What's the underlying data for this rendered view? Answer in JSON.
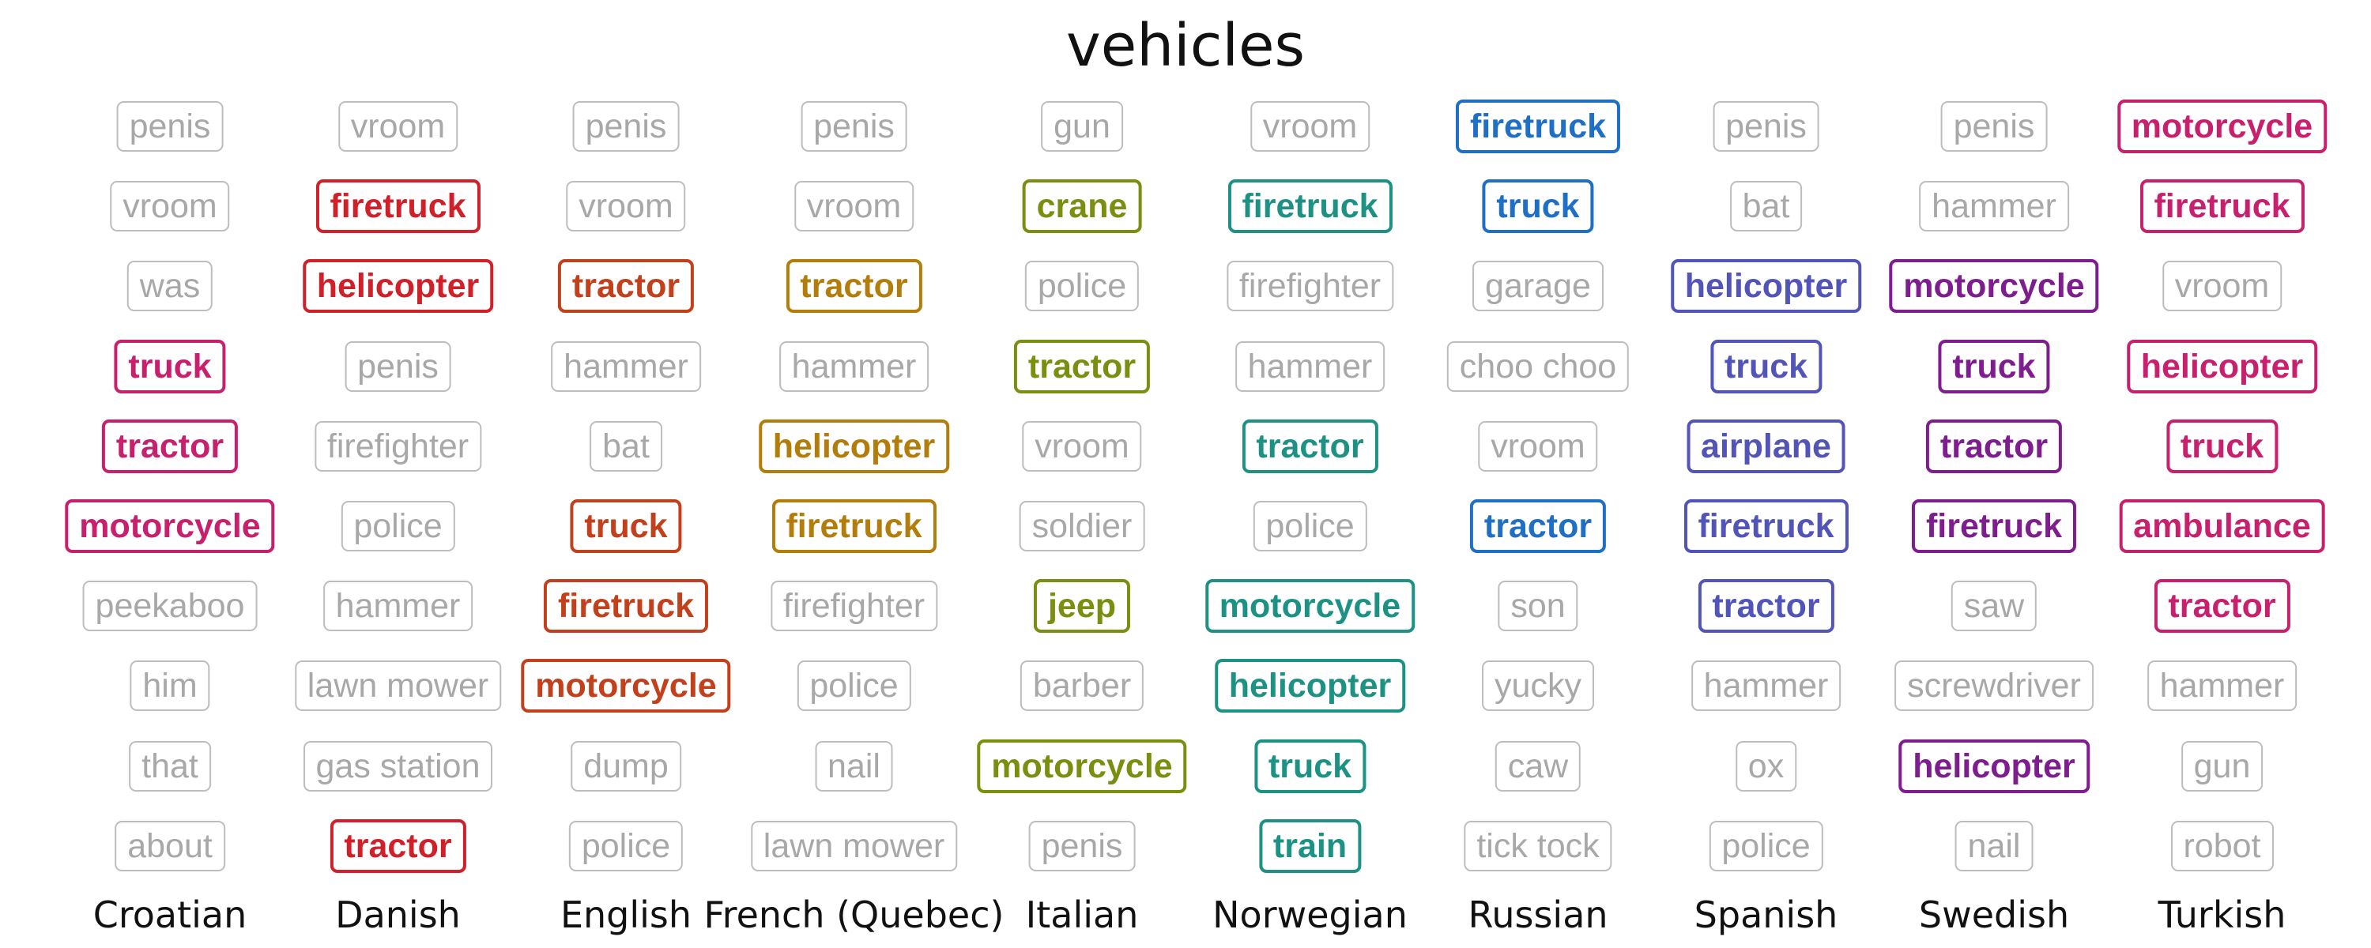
{
  "chart_data": {
    "type": "table",
    "title": "vehicles",
    "languages": [
      {
        "name": "Croatian",
        "color": "#c7206d",
        "words": [
          {
            "w": "penis",
            "hl": false
          },
          {
            "w": "vroom",
            "hl": false
          },
          {
            "w": "was",
            "hl": false
          },
          {
            "w": "truck",
            "hl": true
          },
          {
            "w": "tractor",
            "hl": true
          },
          {
            "w": "motorcycle",
            "hl": true
          },
          {
            "w": "peekaboo",
            "hl": false
          },
          {
            "w": "him",
            "hl": false
          },
          {
            "w": "that",
            "hl": false
          },
          {
            "w": "about",
            "hl": false
          }
        ]
      },
      {
        "name": "Danish",
        "color": "#d0202a",
        "words": [
          {
            "w": "vroom",
            "hl": false
          },
          {
            "w": "firetruck",
            "hl": true
          },
          {
            "w": "helicopter",
            "hl": true
          },
          {
            "w": "penis",
            "hl": false
          },
          {
            "w": "firefighter",
            "hl": false
          },
          {
            "w": "police",
            "hl": false
          },
          {
            "w": "hammer",
            "hl": false
          },
          {
            "w": "lawn mower",
            "hl": false
          },
          {
            "w": "gas station",
            "hl": false
          },
          {
            "w": "tractor",
            "hl": true
          }
        ]
      },
      {
        "name": "English",
        "color": "#c2401b",
        "words": [
          {
            "w": "penis",
            "hl": false
          },
          {
            "w": "vroom",
            "hl": false
          },
          {
            "w": "tractor",
            "hl": true
          },
          {
            "w": "hammer",
            "hl": false
          },
          {
            "w": "bat",
            "hl": false
          },
          {
            "w": "truck",
            "hl": true
          },
          {
            "w": "firetruck",
            "hl": true
          },
          {
            "w": "motorcycle",
            "hl": true
          },
          {
            "w": "dump",
            "hl": false
          },
          {
            "w": "police",
            "hl": false
          }
        ]
      },
      {
        "name": "French (Quebec)",
        "color": "#b37d0c",
        "words": [
          {
            "w": "penis",
            "hl": false
          },
          {
            "w": "vroom",
            "hl": false
          },
          {
            "w": "tractor",
            "hl": true
          },
          {
            "w": "hammer",
            "hl": false
          },
          {
            "w": "helicopter",
            "hl": true
          },
          {
            "w": "firetruck",
            "hl": true
          },
          {
            "w": "firefighter",
            "hl": false
          },
          {
            "w": "police",
            "hl": false
          },
          {
            "w": "nail",
            "hl": false
          },
          {
            "w": "lawn mower",
            "hl": false
          }
        ]
      },
      {
        "name": "Italian",
        "color": "#7a8f10",
        "words": [
          {
            "w": "gun",
            "hl": false
          },
          {
            "w": "crane",
            "hl": true
          },
          {
            "w": "police",
            "hl": false
          },
          {
            "w": "tractor",
            "hl": true
          },
          {
            "w": "vroom",
            "hl": false
          },
          {
            "w": "soldier",
            "hl": false
          },
          {
            "w": "jeep",
            "hl": true
          },
          {
            "w": "barber",
            "hl": false
          },
          {
            "w": "motorcycle",
            "hl": true
          },
          {
            "w": "penis",
            "hl": false
          }
        ]
      },
      {
        "name": "Norwegian",
        "color": "#1d9284",
        "words": [
          {
            "w": "vroom",
            "hl": false
          },
          {
            "w": "firetruck",
            "hl": true
          },
          {
            "w": "firefighter",
            "hl": false
          },
          {
            "w": "hammer",
            "hl": false
          },
          {
            "w": "tractor",
            "hl": true
          },
          {
            "w": "police",
            "hl": false
          },
          {
            "w": "motorcycle",
            "hl": true
          },
          {
            "w": "helicopter",
            "hl": true
          },
          {
            "w": "truck",
            "hl": true
          },
          {
            "w": "train",
            "hl": true
          }
        ]
      },
      {
        "name": "Russian",
        "color": "#1f6fc5",
        "words": [
          {
            "w": "firetruck",
            "hl": true
          },
          {
            "w": "truck",
            "hl": true
          },
          {
            "w": "garage",
            "hl": false
          },
          {
            "w": "choo choo",
            "hl": false
          },
          {
            "w": "vroom",
            "hl": false
          },
          {
            "w": "tractor",
            "hl": true
          },
          {
            "w": "son",
            "hl": false
          },
          {
            "w": "yucky",
            "hl": false
          },
          {
            "w": "caw",
            "hl": false
          },
          {
            "w": "tick tock",
            "hl": false
          }
        ]
      },
      {
        "name": "Spanish",
        "color": "#5254b8",
        "words": [
          {
            "w": "penis",
            "hl": false
          },
          {
            "w": "bat",
            "hl": false
          },
          {
            "w": "helicopter",
            "hl": true
          },
          {
            "w": "truck",
            "hl": true
          },
          {
            "w": "airplane",
            "hl": true
          },
          {
            "w": "firetruck",
            "hl": true
          },
          {
            "w": "tractor",
            "hl": true
          },
          {
            "w": "hammer",
            "hl": false
          },
          {
            "w": "ox",
            "hl": false
          },
          {
            "w": "police",
            "hl": false
          }
        ]
      },
      {
        "name": "Swedish",
        "color": "#7e1d8e",
        "words": [
          {
            "w": "penis",
            "hl": false
          },
          {
            "w": "hammer",
            "hl": false
          },
          {
            "w": "motorcycle",
            "hl": true
          },
          {
            "w": "truck",
            "hl": true
          },
          {
            "w": "tractor",
            "hl": true
          },
          {
            "w": "firetruck",
            "hl": true
          },
          {
            "w": "saw",
            "hl": false
          },
          {
            "w": "screwdriver",
            "hl": false
          },
          {
            "w": "helicopter",
            "hl": true
          },
          {
            "w": "nail",
            "hl": false
          }
        ]
      },
      {
        "name": "Turkish",
        "color": "#c7206d",
        "words": [
          {
            "w": "motorcycle",
            "hl": true
          },
          {
            "w": "firetruck",
            "hl": true
          },
          {
            "w": "vroom",
            "hl": false
          },
          {
            "w": "helicopter",
            "hl": true
          },
          {
            "w": "truck",
            "hl": true
          },
          {
            "w": "ambulance",
            "hl": true
          },
          {
            "w": "tractor",
            "hl": true
          },
          {
            "w": "hammer",
            "hl": false
          },
          {
            "w": "gun",
            "hl": false
          },
          {
            "w": "robot",
            "hl": false
          }
        ]
      }
    ]
  }
}
